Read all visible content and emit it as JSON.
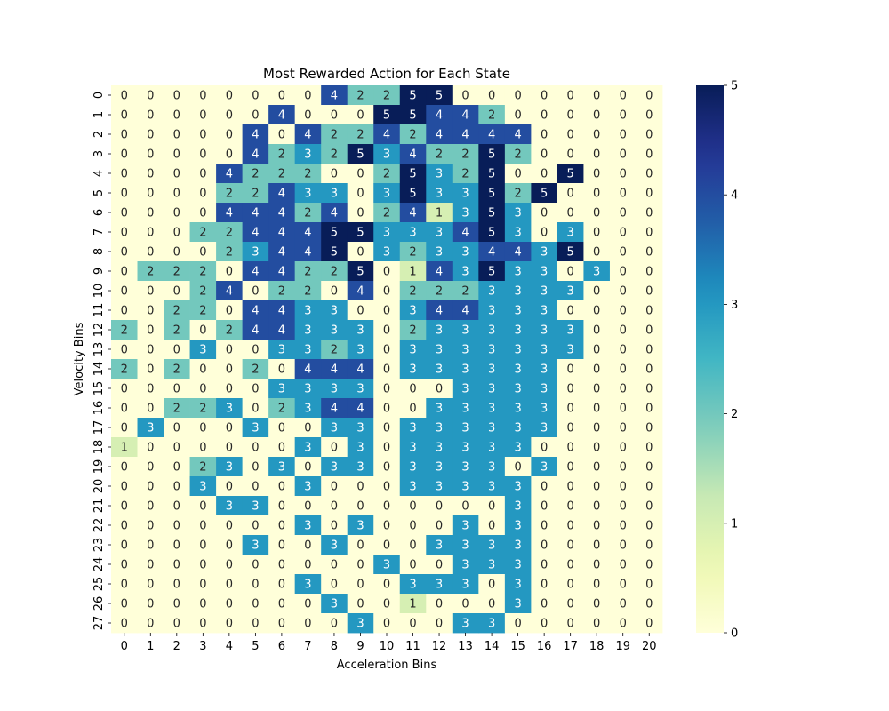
{
  "chart_data": {
    "type": "heatmap",
    "title": "Most Rewarded Action for Each State",
    "xlabel": "Acceleration Bins",
    "ylabel": "Velocity Bins",
    "x_ticks": [
      "0",
      "1",
      "2",
      "3",
      "4",
      "5",
      "6",
      "7",
      "8",
      "9",
      "10",
      "11",
      "12",
      "13",
      "14",
      "15",
      "16",
      "17",
      "18",
      "19",
      "20"
    ],
    "y_ticks": [
      "0",
      "1",
      "2",
      "3",
      "4",
      "5",
      "6",
      "7",
      "8",
      "9",
      "10",
      "11",
      "12",
      "13",
      "14",
      "15",
      "16",
      "17",
      "18",
      "19",
      "20",
      "21",
      "22",
      "23",
      "24",
      "25",
      "26",
      "27"
    ],
    "colorbar": {
      "min": 0,
      "max": 5,
      "ticks": [
        "0",
        "1",
        "2",
        "3",
        "4",
        "5"
      ],
      "colormap": "YlGnBu"
    },
    "values": [
      [
        0,
        0,
        0,
        0,
        0,
        0,
        0,
        0,
        4,
        2,
        2,
        5,
        5,
        0,
        0,
        0,
        0,
        0,
        0,
        0,
        0
      ],
      [
        0,
        0,
        0,
        0,
        0,
        0,
        4,
        0,
        0,
        0,
        5,
        5,
        4,
        4,
        2,
        0,
        0,
        0,
        0,
        0,
        0
      ],
      [
        0,
        0,
        0,
        0,
        0,
        4,
        0,
        4,
        2,
        2,
        4,
        2,
        4,
        4,
        4,
        4,
        0,
        0,
        0,
        0,
        0
      ],
      [
        0,
        0,
        0,
        0,
        0,
        4,
        2,
        3,
        2,
        5,
        3,
        4,
        2,
        2,
        5,
        2,
        0,
        0,
        0,
        0,
        0
      ],
      [
        0,
        0,
        0,
        0,
        4,
        2,
        2,
        2,
        0,
        0,
        2,
        5,
        3,
        2,
        5,
        0,
        0,
        5,
        0,
        0,
        0
      ],
      [
        0,
        0,
        0,
        0,
        2,
        2,
        4,
        3,
        3,
        0,
        3,
        5,
        3,
        3,
        5,
        2,
        5,
        0,
        0,
        0,
        0
      ],
      [
        0,
        0,
        0,
        0,
        4,
        4,
        4,
        2,
        4,
        0,
        2,
        4,
        1,
        3,
        5,
        3,
        0,
        0,
        0,
        0,
        0
      ],
      [
        0,
        0,
        0,
        2,
        2,
        4,
        4,
        4,
        5,
        5,
        3,
        3,
        3,
        4,
        5,
        3,
        0,
        3,
        0,
        0,
        0
      ],
      [
        0,
        0,
        0,
        0,
        2,
        3,
        4,
        4,
        5,
        0,
        3,
        2,
        3,
        3,
        4,
        4,
        3,
        5,
        0,
        0,
        0
      ],
      [
        0,
        2,
        2,
        2,
        0,
        4,
        4,
        2,
        2,
        5,
        0,
        1,
        4,
        3,
        5,
        3,
        3,
        0,
        3,
        0,
        0
      ],
      [
        0,
        0,
        0,
        2,
        4,
        0,
        2,
        2,
        0,
        4,
        0,
        2,
        2,
        2,
        3,
        3,
        3,
        3,
        0,
        0,
        0
      ],
      [
        0,
        0,
        2,
        2,
        0,
        4,
        4,
        3,
        3,
        0,
        0,
        3,
        4,
        4,
        3,
        3,
        3,
        0,
        0,
        0,
        0
      ],
      [
        2,
        0,
        2,
        0,
        2,
        4,
        4,
        3,
        3,
        3,
        0,
        2,
        3,
        3,
        3,
        3,
        3,
        3,
        0,
        0,
        0
      ],
      [
        0,
        0,
        0,
        3,
        0,
        0,
        3,
        3,
        2,
        3,
        0,
        3,
        3,
        3,
        3,
        3,
        3,
        3,
        0,
        0,
        0
      ],
      [
        2,
        0,
        2,
        0,
        0,
        2,
        0,
        4,
        4,
        4,
        0,
        3,
        3,
        3,
        3,
        3,
        3,
        0,
        0,
        0,
        0
      ],
      [
        0,
        0,
        0,
        0,
        0,
        0,
        3,
        3,
        3,
        3,
        0,
        0,
        0,
        3,
        3,
        3,
        3,
        0,
        0,
        0,
        0
      ],
      [
        0,
        0,
        2,
        2,
        3,
        0,
        2,
        3,
        4,
        4,
        0,
        0,
        3,
        3,
        3,
        3,
        3,
        0,
        0,
        0,
        0
      ],
      [
        0,
        3,
        0,
        0,
        0,
        3,
        0,
        0,
        3,
        3,
        0,
        3,
        3,
        3,
        3,
        3,
        3,
        0,
        0,
        0,
        0
      ],
      [
        1,
        0,
        0,
        0,
        0,
        0,
        0,
        3,
        0,
        3,
        0,
        3,
        3,
        3,
        3,
        3,
        0,
        0,
        0,
        0,
        0
      ],
      [
        0,
        0,
        0,
        2,
        3,
        0,
        3,
        0,
        3,
        3,
        0,
        3,
        3,
        3,
        3,
        0,
        3,
        0,
        0,
        0,
        0
      ],
      [
        0,
        0,
        0,
        3,
        0,
        0,
        0,
        3,
        0,
        0,
        0,
        3,
        3,
        3,
        3,
        3,
        0,
        0,
        0,
        0,
        0
      ],
      [
        0,
        0,
        0,
        0,
        3,
        3,
        0,
        0,
        0,
        0,
        0,
        0,
        0,
        0,
        0,
        3,
        0,
        0,
        0,
        0,
        0
      ],
      [
        0,
        0,
        0,
        0,
        0,
        0,
        0,
        3,
        0,
        3,
        0,
        0,
        0,
        3,
        0,
        3,
        0,
        0,
        0,
        0,
        0
      ],
      [
        0,
        0,
        0,
        0,
        0,
        3,
        0,
        0,
        3,
        0,
        0,
        0,
        3,
        3,
        3,
        3,
        0,
        0,
        0,
        0,
        0
      ],
      [
        0,
        0,
        0,
        0,
        0,
        0,
        0,
        0,
        0,
        0,
        3,
        0,
        0,
        3,
        3,
        3,
        0,
        0,
        0,
        0,
        0
      ],
      [
        0,
        0,
        0,
        0,
        0,
        0,
        0,
        3,
        0,
        0,
        0,
        3,
        3,
        3,
        0,
        3,
        0,
        0,
        0,
        0,
        0
      ],
      [
        0,
        0,
        0,
        0,
        0,
        0,
        0,
        0,
        3,
        0,
        0,
        1,
        0,
        0,
        0,
        3,
        0,
        0,
        0,
        0,
        0
      ],
      [
        0,
        0,
        0,
        0,
        0,
        0,
        0,
        0,
        0,
        3,
        0,
        0,
        0,
        3,
        3,
        0,
        0,
        0,
        0,
        0,
        0
      ]
    ]
  }
}
